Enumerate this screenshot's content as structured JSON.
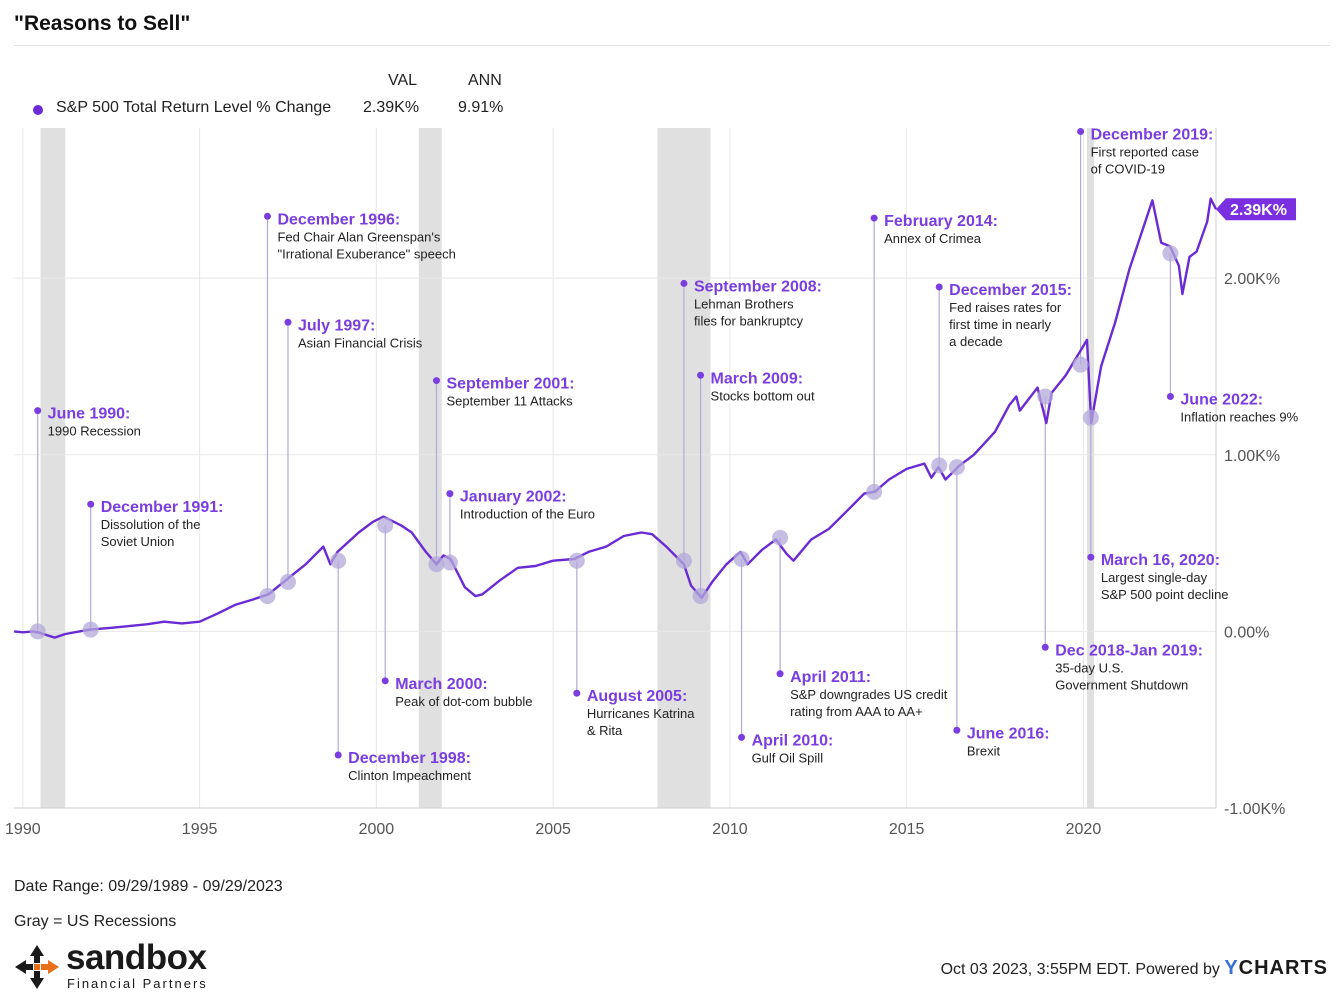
{
  "title": "\"Reasons to Sell\"",
  "legend": {
    "val_header": "VAL",
    "ann_header": "ANN",
    "series_name": "S&P 500 Total Return Level % Change",
    "val": "2.39K%",
    "ann": "9.91%"
  },
  "colors": {
    "series": "#6a2ad4",
    "annotation": "#7a3ee0",
    "recession": "#e0e0e0",
    "marker": "#b3a9d9",
    "grid": "#e8e8e8",
    "badge": "#7a2fe0"
  },
  "chart_data": {
    "type": "line",
    "title": "\"Reasons to Sell\"",
    "series": [
      {
        "name": "S&P 500 Total Return Level % Change",
        "unit": "%",
        "points": [
          [
            1989.75,
            0
          ],
          [
            1990.0,
            -5
          ],
          [
            1990.3,
            0
          ],
          [
            1990.5,
            -10
          ],
          [
            1990.9,
            -35
          ],
          [
            1991.2,
            -15
          ],
          [
            1991.9,
            10
          ],
          [
            1992.5,
            20
          ],
          [
            1993.0,
            30
          ],
          [
            1993.5,
            40
          ],
          [
            1994.0,
            55
          ],
          [
            1994.5,
            45
          ],
          [
            1995.0,
            55
          ],
          [
            1995.5,
            100
          ],
          [
            1996.0,
            150
          ],
          [
            1996.5,
            180
          ],
          [
            1996.95,
            210
          ],
          [
            1997.5,
            300
          ],
          [
            1998.0,
            380
          ],
          [
            1998.5,
            480
          ],
          [
            1998.7,
            380
          ],
          [
            1998.9,
            450
          ],
          [
            1999.5,
            560
          ],
          [
            1999.9,
            620
          ],
          [
            2000.2,
            650
          ],
          [
            2000.7,
            600
          ],
          [
            2001.0,
            560
          ],
          [
            2001.4,
            450
          ],
          [
            2001.7,
            380
          ],
          [
            2001.9,
            430
          ],
          [
            2002.1,
            410
          ],
          [
            2002.5,
            250
          ],
          [
            2002.8,
            200
          ],
          [
            2003.0,
            210
          ],
          [
            2003.5,
            290
          ],
          [
            2004.0,
            360
          ],
          [
            2004.5,
            370
          ],
          [
            2005.0,
            400
          ],
          [
            2005.6,
            410
          ],
          [
            2006.0,
            450
          ],
          [
            2006.5,
            480
          ],
          [
            2007.0,
            540
          ],
          [
            2007.5,
            560
          ],
          [
            2007.8,
            550
          ],
          [
            2008.2,
            480
          ],
          [
            2008.7,
            380
          ],
          [
            2008.9,
            260
          ],
          [
            2009.2,
            190
          ],
          [
            2009.5,
            280
          ],
          [
            2009.9,
            380
          ],
          [
            2010.3,
            450
          ],
          [
            2010.5,
            380
          ],
          [
            2010.9,
            460
          ],
          [
            2011.3,
            520
          ],
          [
            2011.6,
            440
          ],
          [
            2011.8,
            400
          ],
          [
            2012.3,
            520
          ],
          [
            2012.8,
            580
          ],
          [
            2013.3,
            680
          ],
          [
            2013.8,
            780
          ],
          [
            2014.1,
            790
          ],
          [
            2014.5,
            860
          ],
          [
            2015.0,
            920
          ],
          [
            2015.5,
            950
          ],
          [
            2015.7,
            870
          ],
          [
            2015.9,
            930
          ],
          [
            2016.1,
            860
          ],
          [
            2016.5,
            940
          ],
          [
            2016.9,
            1000
          ],
          [
            2017.5,
            1130
          ],
          [
            2017.9,
            1280
          ],
          [
            2018.1,
            1330
          ],
          [
            2018.2,
            1250
          ],
          [
            2018.7,
            1380
          ],
          [
            2018.95,
            1180
          ],
          [
            2019.1,
            1350
          ],
          [
            2019.5,
            1450
          ],
          [
            2019.95,
            1600
          ],
          [
            2020.1,
            1650
          ],
          [
            2020.22,
            1180
          ],
          [
            2020.5,
            1500
          ],
          [
            2020.9,
            1750
          ],
          [
            2021.3,
            2050
          ],
          [
            2021.8,
            2350
          ],
          [
            2021.95,
            2440
          ],
          [
            2022.2,
            2200
          ],
          [
            2022.45,
            2180
          ],
          [
            2022.7,
            2070
          ],
          [
            2022.8,
            1910
          ],
          [
            2023.0,
            2120
          ],
          [
            2023.2,
            2150
          ],
          [
            2023.5,
            2320
          ],
          [
            2023.6,
            2450
          ],
          [
            2023.75,
            2390
          ]
        ]
      }
    ],
    "last_value_label": "2.39K%",
    "xlim": [
      1989.75,
      2023.75
    ],
    "ylim": [
      -1000,
      2850
    ],
    "x_ticks": [
      1990,
      1995,
      2000,
      2005,
      2010,
      2015,
      2020
    ],
    "x_tick_labels": [
      "1990",
      "1995",
      "2000",
      "2005",
      "2010",
      "2015",
      "2020"
    ],
    "y_ticks": [
      -1000,
      0,
      1000,
      2000
    ],
    "y_tick_labels": [
      "-1.00K%",
      "0.00%",
      "1.00K%",
      "2.00K%"
    ],
    "recessions": [
      [
        1990.5,
        1991.2
      ],
      [
        2001.2,
        2001.85
      ],
      [
        2007.95,
        2009.45
      ],
      [
        2020.1,
        2020.3
      ]
    ],
    "annotations": [
      {
        "x": 1990.42,
        "y": 0,
        "label_y": 1250,
        "title": "June 1990:",
        "lines": [
          "1990 Recession"
        ]
      },
      {
        "x": 1991.92,
        "y": 10,
        "label_y": 720,
        "title": "December 1991:",
        "lines": [
          "Dissolution of the",
          "Soviet Union"
        ]
      },
      {
        "x": 1996.92,
        "y": 200,
        "label_y": 2350,
        "title": "December 1996:",
        "lines": [
          "Fed Chair Alan Greenspan's",
          "\"Irrational Exuberance\" speech"
        ]
      },
      {
        "x": 1997.5,
        "y": 280,
        "label_y": 1750,
        "title": "July 1997:",
        "lines": [
          "Asian Financial Crisis"
        ]
      },
      {
        "x": 1998.92,
        "y": 400,
        "label_y": -700,
        "title": "December 1998:",
        "lines": [
          "Clinton Impeachment"
        ]
      },
      {
        "x": 2000.25,
        "y": 600,
        "label_y": -280,
        "title": "March 2000:",
        "lines": [
          "Peak of dot-com bubble"
        ]
      },
      {
        "x": 2001.7,
        "y": 380,
        "label_y": 1420,
        "title": "September 2001:",
        "lines": [
          "September 11 Attacks"
        ]
      },
      {
        "x": 2002.08,
        "y": 390,
        "label_y": 780,
        "title": "January 2002:",
        "lines": [
          "Introduction of the Euro"
        ]
      },
      {
        "x": 2005.67,
        "y": 400,
        "label_y": -350,
        "title": "August 2005:",
        "lines": [
          "Hurricanes Katrina",
          "& Rita"
        ]
      },
      {
        "x": 2008.7,
        "y": 400,
        "label_y": 1970,
        "title": "September 2008:",
        "lines": [
          "Lehman Brothers",
          "files for bankruptcy"
        ]
      },
      {
        "x": 2009.17,
        "y": 200,
        "label_y": 1450,
        "title": "March 2009:",
        "lines": [
          "Stocks bottom out"
        ]
      },
      {
        "x": 2010.33,
        "y": 410,
        "label_y": -600,
        "title": "April 2010:",
        "lines": [
          "Gulf Oil Spill"
        ]
      },
      {
        "x": 2011.42,
        "y": 530,
        "label_y": -240,
        "title": "April 2011:",
        "lines": [
          "S&P downgrades US credit",
          "rating from AAA to AA+"
        ]
      },
      {
        "x": 2014.08,
        "y": 790,
        "label_y": 2340,
        "title": "February 2014:",
        "lines": [
          "Annex of Crimea"
        ]
      },
      {
        "x": 2015.92,
        "y": 940,
        "label_y": 1950,
        "title": "December 2015:",
        "lines": [
          "Fed raises rates for",
          "first time in nearly",
          "a decade"
        ]
      },
      {
        "x": 2016.42,
        "y": 930,
        "label_y": -560,
        "title": "June 2016:",
        "lines": [
          "Brexit"
        ]
      },
      {
        "x": 2018.92,
        "y": 1330,
        "label_y": -90,
        "title": "Dec 2018-Jan 2019:",
        "lines": [
          "35-day U.S.",
          "Government Shutdown"
        ]
      },
      {
        "x": 2019.92,
        "y": 1510,
        "label_y": 2830,
        "title": "December 2019:",
        "lines": [
          "First reported case",
          "of COVID-19"
        ]
      },
      {
        "x": 2020.21,
        "y": 1210,
        "label_y": 420,
        "title": "March 16, 2020:",
        "lines": [
          "Largest single-day",
          "S&P 500 point decline"
        ]
      },
      {
        "x": 2022.46,
        "y": 2140,
        "label_y": 1330,
        "title": "June 2022:",
        "lines": [
          "Inflation reaches 9%"
        ]
      }
    ]
  },
  "footer": {
    "date_range": "Date Range: 09/29/1989 - 09/29/2023",
    "gray_note": "Gray = US Recessions",
    "logo_word": "sandbox",
    "logo_sub": "Financial Partners",
    "powered_text": "Oct 03 2023, 3:55PM EDT. Powered by",
    "powered_brand_y": "Y",
    "powered_brand_rest": "CHARTS"
  }
}
